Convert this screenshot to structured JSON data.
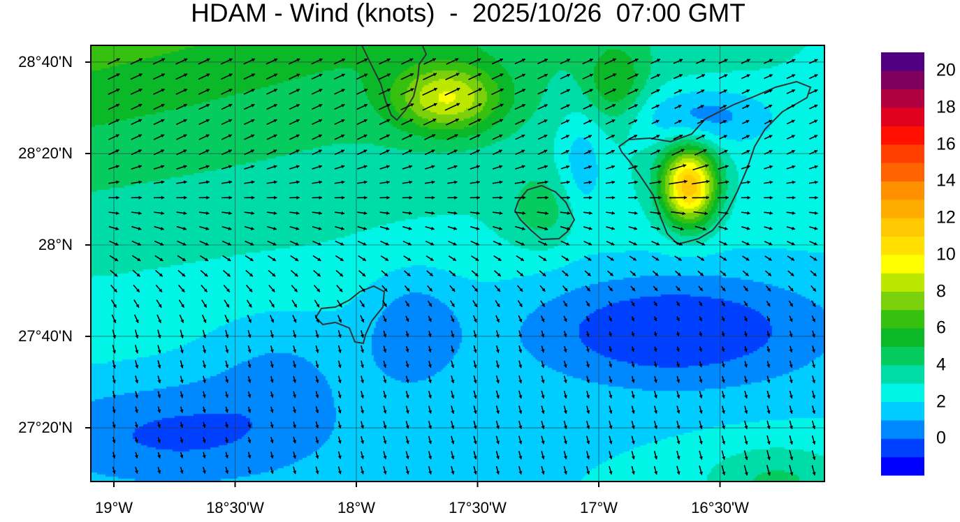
{
  "title": "HDAM - Wind (knots)  -  2025/10/26  07:00 GMT",
  "map": {
    "variable": "Wind speed",
    "units": "knots",
    "projection_extent": {
      "lon": [
        -19.1,
        -16.1
      ],
      "lat": [
        27.13,
        28.73
      ]
    },
    "gridlines": true,
    "y_ticks": [
      {
        "lat": 28.6667,
        "label": "28°40'N"
      },
      {
        "lat": 28.3333,
        "label": "28°20'N"
      },
      {
        "lat": 28.0,
        "label": "28°N"
      },
      {
        "lat": 27.6667,
        "label": "27°40'N"
      },
      {
        "lat": 27.3333,
        "label": "27°20'N"
      }
    ],
    "x_ticks": [
      {
        "lon": -19.0,
        "label": "19°W"
      },
      {
        "lon": -18.5,
        "label": "18°30'W"
      },
      {
        "lon": -18.0,
        "label": "18°W"
      },
      {
        "lon": -17.5,
        "label": "17°30'W"
      },
      {
        "lon": -17.0,
        "label": "17°W"
      },
      {
        "lon": -16.5,
        "label": "16°30'W"
      }
    ]
  },
  "colorbar": {
    "min": -1,
    "max": 22,
    "labels": [
      "0",
      "2",
      "4",
      "6",
      "8",
      "10",
      "12",
      "14",
      "16",
      "18",
      "20"
    ],
    "label_values": [
      0,
      2,
      4,
      6,
      8,
      10,
      12,
      14,
      16,
      18,
      20
    ],
    "colors": [
      "#0000ff",
      "#0040ff",
      "#0088ff",
      "#00ccff",
      "#00f5e6",
      "#00dca8",
      "#06cc60",
      "#0ab828",
      "#36c010",
      "#7ad00a",
      "#bce800",
      "#ffff00",
      "#ffe000",
      "#ffc800",
      "#ffac00",
      "#ff9000",
      "#ff6400",
      "#ff4000",
      "#ff1000",
      "#e00020",
      "#b00040",
      "#800060",
      "#500080"
    ]
  }
}
